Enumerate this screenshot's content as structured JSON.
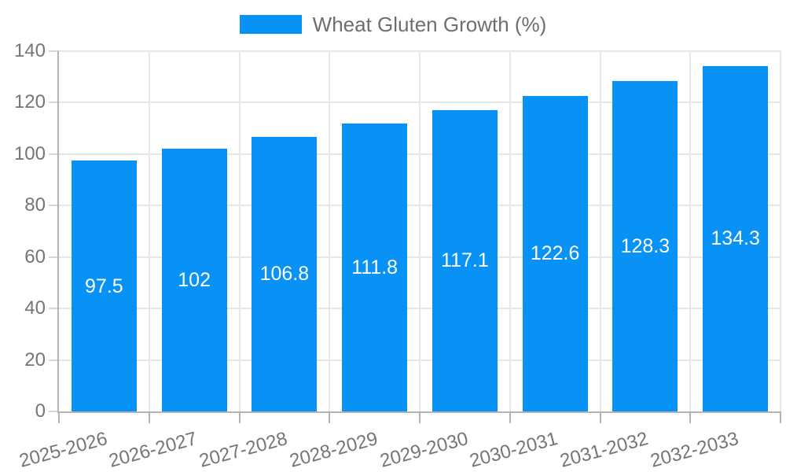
{
  "legend": {
    "series_label": "Wheat Gluten Growth (%)"
  },
  "colors": {
    "bar": "#0892f5",
    "grid": "#e7e7e7",
    "axis_line": "#b3b3b3",
    "y_tick": "#d6d6d6",
    "axis_text": "#757575",
    "value_text": "#ffffff",
    "legend_text": "#6e6e6e",
    "background": "#ffffff"
  },
  "chart_data": {
    "type": "bar",
    "title": "",
    "series_name": "Wheat Gluten Growth (%)",
    "categories": [
      "2025-2026",
      "2026-2027",
      "2027-2028",
      "2028-2029",
      "2029-2030",
      "2030-2031",
      "2031-2032",
      "2032-2033"
    ],
    "values": [
      97.5,
      102,
      106.8,
      111.8,
      117.1,
      122.6,
      128.3,
      134.3
    ],
    "value_labels": [
      "97.5",
      "102",
      "106.8",
      "111.8",
      "117.1",
      "122.6",
      "128.3",
      "134.3"
    ],
    "value_labels_position": "inside-center",
    "xlabel": "",
    "ylabel": "",
    "ylim": [
      0,
      140
    ],
    "yticks": [
      0,
      20,
      40,
      60,
      80,
      100,
      120,
      140
    ],
    "grid": true,
    "legend_position": "top-center",
    "x_label_rotation_deg": -15
  }
}
